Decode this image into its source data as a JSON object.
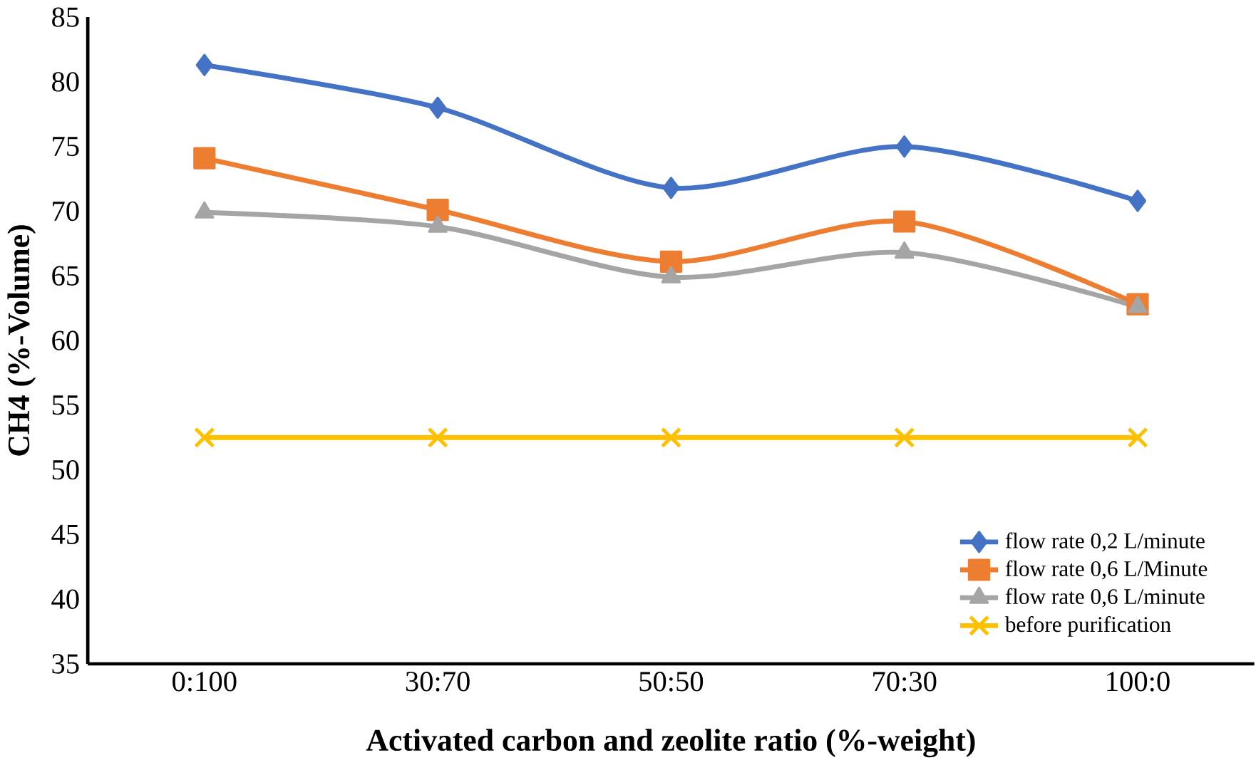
{
  "chart_data": {
    "type": "line",
    "xlabel": "Activated carbon and zeolite ratio (%-weight)",
    "ylabel": "CH4 (%-Volume)",
    "categories": [
      "0:100",
      "30:70",
      "50:50",
      "70:30",
      "100:0"
    ],
    "series": [
      {
        "name": "flow rate 0,2 L/minute",
        "color": "#4472c4",
        "marker": "diamond",
        "values": [
          81.3,
          78.0,
          71.8,
          75.0,
          70.8
        ]
      },
      {
        "name": "flow rate 0,6 L/Minute",
        "color": "#ed7d31",
        "marker": "square",
        "values": [
          74.1,
          70.1,
          66.1,
          69.2,
          62.8
        ]
      },
      {
        "name": "flow rate 0,6 L/minute",
        "color": "#a5a5a5",
        "marker": "triangle",
        "values": [
          69.9,
          68.8,
          64.9,
          66.8,
          62.6
        ]
      },
      {
        "name": "before purification",
        "color": "#ffc000",
        "marker": "cross",
        "values": [
          52.5,
          52.5,
          52.5,
          52.5,
          52.5
        ]
      }
    ],
    "ylim": [
      35,
      85
    ],
    "yticks": [
      35,
      40,
      45,
      50,
      55,
      60,
      65,
      70,
      75,
      80,
      85
    ],
    "grid": false,
    "legend": "bottom right"
  }
}
